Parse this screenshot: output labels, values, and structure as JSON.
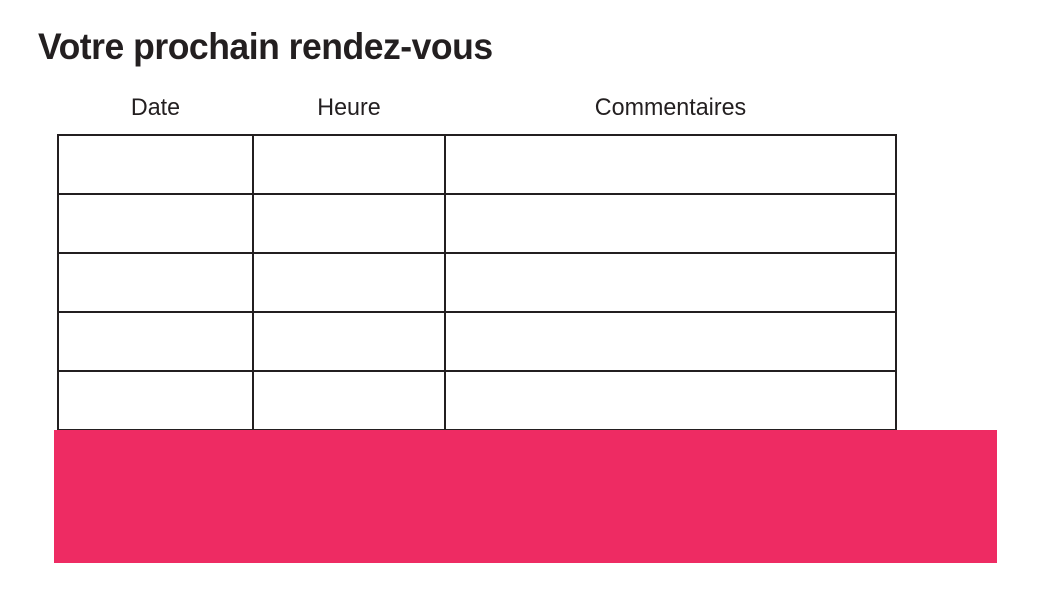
{
  "page": {
    "title": "Votre prochain rendez-vous"
  },
  "appointments_table": {
    "headers": [
      "Date",
      "Heure",
      "Commentaires"
    ],
    "rows": [
      [
        "",
        "",
        ""
      ],
      [
        "",
        "",
        ""
      ],
      [
        "",
        "",
        ""
      ],
      [
        "",
        "",
        ""
      ],
      [
        "",
        "",
        ""
      ]
    ]
  },
  "banner": {
    "label": "",
    "color": "#ee2b63"
  },
  "colors": {
    "background": "#ffffff",
    "title_text": "#231f20",
    "header_text": "#231f20",
    "table_border": "#231f20",
    "accent_pink": "#ee2b63"
  }
}
